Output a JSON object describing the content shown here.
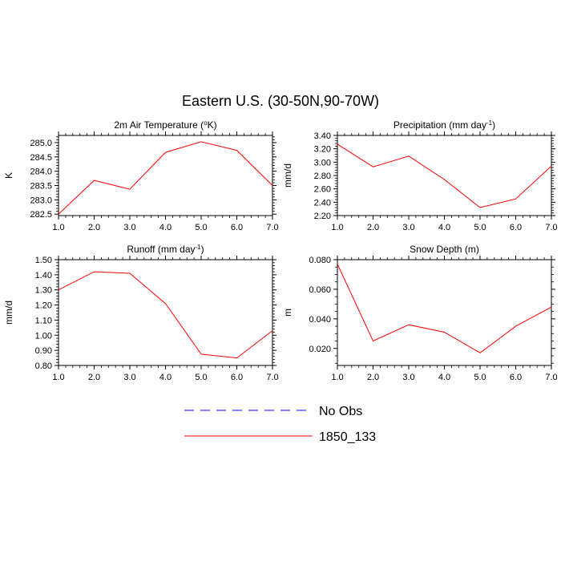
{
  "figure": {
    "title": "Eastern U.S. (30-50N,90-70W)"
  },
  "chart_data": [
    {
      "type": "line",
      "title": "2m Air Temperature (°K)",
      "title_parts": [
        "2m Air Temperature (",
        "o",
        "K)"
      ],
      "xlabel": "",
      "ylabel": "K",
      "xlim": [
        1,
        7
      ],
      "ylim": [
        282.45,
        285.25
      ],
      "x_ticks": [
        1,
        2,
        3,
        4,
        5,
        6,
        7
      ],
      "x_tick_labels": [
        "1.0",
        "2.0",
        "3.0",
        "4.0",
        "5.0",
        "6.0",
        "7.0"
      ],
      "y_ticks": [
        282.5,
        283.0,
        283.5,
        284.0,
        284.5,
        285.0
      ],
      "y_tick_labels": [
        "282.5",
        "283.0",
        "283.5",
        "284.0",
        "284.5",
        "285.0"
      ],
      "x": [
        1,
        2,
        3,
        4,
        5,
        6,
        7
      ],
      "series": [
        {
          "name": "1850_133",
          "color": "#ff0000",
          "values": [
            282.5,
            283.68,
            283.37,
            284.66,
            285.03,
            284.73,
            283.5
          ]
        }
      ]
    },
    {
      "type": "line",
      "title": "Precipitation (mm day-1)",
      "title_parts": [
        "Precipitation (mm day",
        "-1",
        ")"
      ],
      "xlabel": "",
      "ylabel": "mm/d",
      "xlim": [
        1,
        7
      ],
      "ylim": [
        2.2,
        3.4
      ],
      "x_ticks": [
        1,
        2,
        3,
        4,
        5,
        6,
        7
      ],
      "x_tick_labels": [
        "1.0",
        "2.0",
        "3.0",
        "4.0",
        "5.0",
        "6.0",
        "7.0"
      ],
      "y_ticks": [
        2.2,
        2.4,
        2.6,
        2.8,
        3.0,
        3.2,
        3.4
      ],
      "y_tick_labels": [
        "2.20",
        "2.40",
        "2.60",
        "2.80",
        "3.00",
        "3.20",
        "3.40"
      ],
      "x": [
        1,
        2,
        3,
        4,
        5,
        6,
        7
      ],
      "series": [
        {
          "name": "1850_133",
          "color": "#ff0000",
          "values": [
            3.27,
            2.93,
            3.09,
            2.74,
            2.32,
            2.45,
            2.94
          ]
        }
      ]
    },
    {
      "type": "line",
      "title": "Runoff (mm day-1)",
      "title_parts": [
        "Runoff (mm day",
        "-1",
        ")"
      ],
      "xlabel": "",
      "ylabel": "mm/d",
      "xlim": [
        1,
        7
      ],
      "ylim": [
        0.8,
        1.5
      ],
      "x_ticks": [
        1,
        2,
        3,
        4,
        5,
        6,
        7
      ],
      "x_tick_labels": [
        "1.0",
        "2.0",
        "3.0",
        "4.0",
        "5.0",
        "6.0",
        "7.0"
      ],
      "y_ticks": [
        0.8,
        0.9,
        1.0,
        1.1,
        1.2,
        1.3,
        1.4,
        1.5
      ],
      "y_tick_labels": [
        "0.80",
        "0.90",
        "1.00",
        "1.10",
        "1.20",
        "1.30",
        "1.40",
        "1.50"
      ],
      "x": [
        1,
        2,
        3,
        4,
        5,
        6,
        7
      ],
      "series": [
        {
          "name": "1850_133",
          "color": "#ff0000",
          "values": [
            1.3,
            1.42,
            1.41,
            1.21,
            0.875,
            0.85,
            1.03
          ]
        }
      ]
    },
    {
      "type": "line",
      "title": "Snow Depth (m)",
      "title_parts": [
        "Snow Depth (m)"
      ],
      "xlabel": "",
      "ylabel": "m",
      "xlim": [
        1,
        7
      ],
      "ylim": [
        0.0085,
        0.08
      ],
      "x_ticks": [
        1,
        2,
        3,
        4,
        5,
        6,
        7
      ],
      "x_tick_labels": [
        "1.0",
        "2.0",
        "3.0",
        "4.0",
        "5.0",
        "6.0",
        "7.0"
      ],
      "y_ticks": [
        0.02,
        0.04,
        0.06,
        0.08
      ],
      "y_tick_labels": [
        "0.020",
        "0.040",
        "0.060",
        "0.080"
      ],
      "x": [
        1,
        2,
        3,
        4,
        5,
        6,
        7
      ],
      "series": [
        {
          "name": "1850_133",
          "color": "#ff0000",
          "values": [
            0.077,
            0.025,
            0.036,
            0.031,
            0.017,
            0.035,
            0.048
          ]
        }
      ]
    }
  ],
  "legend": {
    "placement": "bottom-center",
    "entries": [
      {
        "label": "No Obs",
        "color": "#0000ff",
        "style": "dashed"
      },
      {
        "label": "1850_133",
        "color": "#ff0000",
        "style": "solid"
      }
    ]
  }
}
